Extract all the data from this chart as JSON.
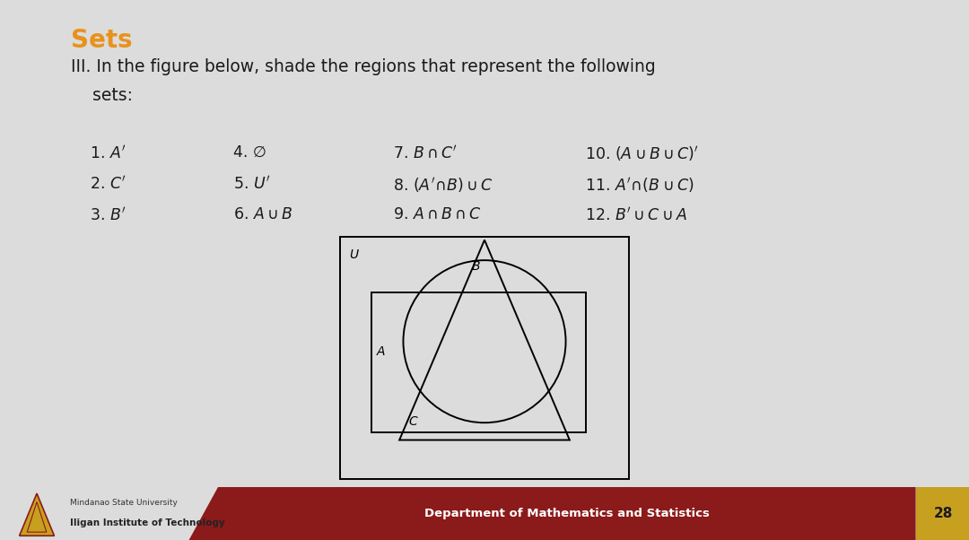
{
  "title": "Sets",
  "title_color": "#E8921C",
  "subtitle_line1": "III. In the figure below, shade the regions that represent the following",
  "subtitle_line2": "    sets:",
  "bg_color": "#DCDCDC",
  "card_color": "#FFFFFF",
  "items_col1": [
    "1. $A'$",
    "2. $C'$",
    "3. $B'$"
  ],
  "items_col2_labels": [
    "4. ∅",
    "5. $U'$",
    "6. $A \\cup B$"
  ],
  "items_col3_labels": [
    "7. $B \\cap C'$",
    "8. $(A'\\!\\cap\\! B) \\cup C$",
    "9. $A \\cap B \\cap C$"
  ],
  "items_col4_labels": [
    "10. $(A \\cup B \\cup C)'$",
    "11. $A'\\!\\cap\\!(B \\cup C)$",
    "12. $B' \\cup C \\cup A$"
  ],
  "footer_bg": "#8B1A1A",
  "footer_text": "Department of Mathematics and Statistics",
  "footer_text_color": "#FFFFFF",
  "page_num": "28",
  "page_num_bg": "#C8A020",
  "inst_line1": "Mindanao State University",
  "inst_line2": "Iligan Institute of Technology"
}
